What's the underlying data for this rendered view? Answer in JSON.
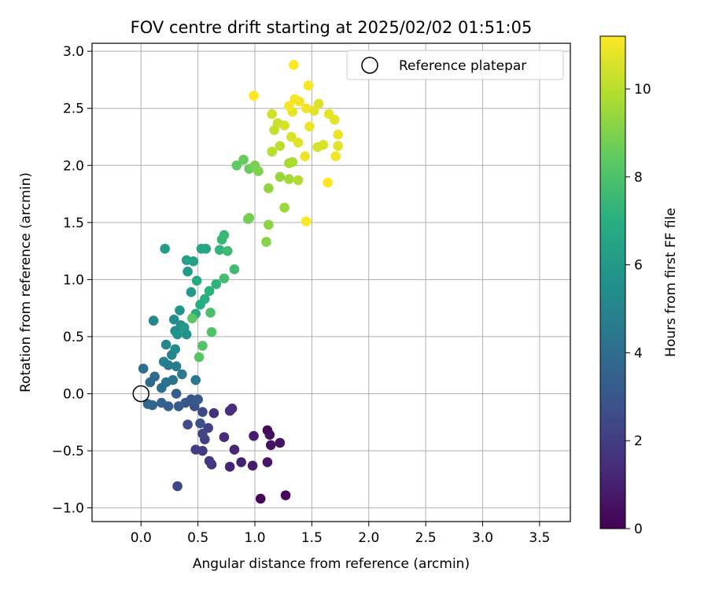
{
  "chart_data": {
    "type": "scatter",
    "title": "FOV centre drift starting at 2025/02/02 01:51:05",
    "xlabel": "Angular distance from reference (arcmin)",
    "ylabel": "Rotation from reference (arcmin)",
    "xlim": [
      -0.43,
      3.77
    ],
    "ylim": [
      -1.12,
      3.07
    ],
    "xticks": [
      "0.0",
      "0.5",
      "1.0",
      "1.5",
      "2.0",
      "2.5",
      "3.0",
      "3.5"
    ],
    "yticks": [
      "−1.0",
      "−0.5",
      "0.0",
      "0.5",
      "1.0",
      "1.5",
      "2.0",
      "2.5",
      "3.0"
    ],
    "grid": true,
    "legend": {
      "placement": "top-right",
      "entries": [
        "Reference platepar"
      ]
    },
    "reference_point": {
      "label": "Reference platepar",
      "x": 0.0,
      "y": 0.0
    },
    "colorbar": {
      "label": "Hours from first FF file",
      "colormap": "viridis",
      "range": [
        0,
        11.2
      ],
      "ticks": [
        "0",
        "2",
        "4",
        "6",
        "8",
        "10"
      ]
    },
    "points": [
      [
        1.05,
        -0.92,
        0.1
      ],
      [
        1.27,
        -0.89,
        0.2
      ],
      [
        1.11,
        -0.32,
        0.3
      ],
      [
        1.13,
        -0.36,
        0.4
      ],
      [
        1.14,
        -0.45,
        0.5
      ],
      [
        1.22,
        -0.43,
        0.6
      ],
      [
        1.11,
        -0.6,
        0.7
      ],
      [
        0.99,
        -0.37,
        0.8
      ],
      [
        0.98,
        -0.63,
        0.9
      ],
      [
        0.88,
        -0.6,
        1.0
      ],
      [
        0.78,
        -0.64,
        1.1
      ],
      [
        0.82,
        -0.49,
        1.2
      ],
      [
        0.73,
        -0.38,
        1.3
      ],
      [
        0.8,
        -0.13,
        1.4
      ],
      [
        0.78,
        -0.15,
        1.5
      ],
      [
        0.64,
        -0.17,
        1.6
      ],
      [
        0.62,
        -0.62,
        1.7
      ],
      [
        0.6,
        -0.59,
        1.8
      ],
      [
        0.54,
        -0.5,
        1.9
      ],
      [
        0.48,
        -0.49,
        2.0
      ],
      [
        0.56,
        -0.4,
        2.1
      ],
      [
        0.59,
        -0.3,
        2.2
      ],
      [
        0.54,
        -0.35,
        2.3
      ],
      [
        0.32,
        -0.81,
        2.4
      ],
      [
        0.54,
        -0.16,
        2.5
      ],
      [
        0.41,
        -0.27,
        2.6
      ],
      [
        0.47,
        -0.11,
        2.7
      ],
      [
        0.52,
        -0.26,
        2.8
      ],
      [
        0.44,
        -0.05,
        2.9
      ],
      [
        0.39,
        -0.08,
        3.0
      ],
      [
        0.5,
        -0.05,
        3.1
      ],
      [
        0.33,
        -0.11,
        3.2
      ],
      [
        0.31,
        0.0,
        3.3
      ],
      [
        0.24,
        -0.11,
        3.4
      ],
      [
        0.18,
        -0.08,
        3.5
      ],
      [
        0.1,
        -0.1,
        3.6
      ],
      [
        0.06,
        -0.09,
        3.7
      ],
      [
        0.08,
        0.1,
        3.8
      ],
      [
        0.12,
        0.15,
        3.9
      ],
      [
        0.02,
        0.22,
        4.0
      ],
      [
        0.18,
        0.05,
        4.1
      ],
      [
        0.22,
        0.1,
        4.2
      ],
      [
        0.28,
        0.12,
        4.3
      ],
      [
        0.48,
        0.12,
        4.4
      ],
      [
        0.36,
        0.17,
        4.5
      ],
      [
        0.24,
        0.25,
        4.6
      ],
      [
        0.31,
        0.24,
        4.7
      ],
      [
        0.2,
        0.28,
        4.8
      ],
      [
        0.27,
        0.34,
        4.9
      ],
      [
        0.22,
        0.43,
        5.0
      ],
      [
        0.11,
        0.64,
        5.1
      ],
      [
        0.3,
        0.39,
        5.2
      ],
      [
        0.3,
        0.55,
        5.3
      ],
      [
        0.29,
        0.65,
        5.4
      ],
      [
        0.35,
        0.6,
        5.5
      ],
      [
        0.32,
        0.52,
        5.6
      ],
      [
        0.4,
        0.52,
        5.7
      ],
      [
        0.34,
        0.73,
        5.8
      ],
      [
        0.38,
        0.58,
        5.9
      ],
      [
        0.44,
        0.89,
        6.0
      ],
      [
        0.41,
        1.07,
        6.1
      ],
      [
        0.21,
        1.27,
        6.2
      ],
      [
        0.4,
        1.17,
        6.3
      ],
      [
        0.46,
        1.16,
        6.4
      ],
      [
        0.53,
        1.27,
        6.5
      ],
      [
        0.57,
        1.27,
        6.6
      ],
      [
        0.49,
        0.99,
        6.7
      ],
      [
        0.48,
        0.7,
        6.8
      ],
      [
        0.52,
        0.78,
        6.9
      ],
      [
        0.56,
        0.83,
        7.0
      ],
      [
        0.6,
        0.9,
        7.1
      ],
      [
        0.66,
        0.96,
        7.2
      ],
      [
        0.69,
        1.26,
        7.3
      ],
      [
        0.71,
        1.35,
        7.4
      ],
      [
        0.73,
        1.39,
        7.5
      ],
      [
        0.76,
        1.25,
        7.6
      ],
      [
        0.82,
        1.09,
        7.7
      ],
      [
        0.73,
        1.01,
        7.8
      ],
      [
        0.61,
        0.71,
        7.9
      ],
      [
        0.62,
        0.54,
        8.0
      ],
      [
        0.54,
        0.42,
        8.1
      ],
      [
        0.51,
        0.32,
        8.2
      ],
      [
        0.45,
        0.66,
        8.3
      ],
      [
        0.84,
        2.0,
        8.4
      ],
      [
        0.9,
        2.05,
        8.5
      ],
      [
        0.95,
        1.97,
        8.6
      ],
      [
        0.94,
        1.53,
        8.7
      ],
      [
        0.95,
        1.54,
        8.8
      ],
      [
        1.0,
        2.0,
        8.9
      ],
      [
        1.03,
        1.95,
        9.0
      ],
      [
        1.1,
        1.33,
        9.1
      ],
      [
        1.12,
        1.48,
        9.2
      ],
      [
        1.12,
        1.8,
        9.3
      ],
      [
        1.22,
        1.9,
        9.4
      ],
      [
        1.26,
        1.63,
        9.5
      ],
      [
        1.3,
        1.88,
        9.6
      ],
      [
        1.3,
        2.02,
        9.7
      ],
      [
        1.33,
        2.03,
        9.8
      ],
      [
        1.38,
        1.87,
        9.9
      ],
      [
        1.15,
        2.12,
        10.0
      ],
      [
        1.22,
        2.17,
        10.1
      ],
      [
        1.17,
        2.31,
        10.2
      ],
      [
        1.2,
        2.37,
        10.3
      ],
      [
        1.15,
        2.45,
        10.4
      ],
      [
        1.26,
        2.35,
        10.5
      ],
      [
        1.32,
        2.25,
        10.6
      ],
      [
        1.38,
        2.2,
        10.7
      ],
      [
        1.33,
        2.47,
        10.8
      ],
      [
        1.44,
        2.08,
        10.9
      ],
      [
        1.45,
        2.5,
        11.0
      ],
      [
        1.35,
        2.58,
        11.1
      ],
      [
        1.45,
        1.51,
        11.15
      ],
      [
        0.99,
        2.61,
        11.2
      ],
      [
        1.34,
        2.88,
        11.2
      ],
      [
        1.64,
        1.85,
        11.2
      ],
      [
        1.47,
        2.7,
        11.1
      ],
      [
        1.7,
        2.4,
        10.8
      ],
      [
        1.73,
        2.27,
        10.9
      ],
      [
        1.73,
        2.17,
        10.7
      ],
      [
        1.71,
        2.08,
        11.0
      ],
      [
        1.6,
        2.18,
        10.6
      ],
      [
        1.55,
        2.16,
        10.5
      ],
      [
        1.56,
        2.54,
        10.6
      ],
      [
        1.52,
        2.48,
        10.7
      ],
      [
        1.65,
        2.45,
        10.8
      ],
      [
        1.48,
        2.34,
        10.9
      ],
      [
        1.39,
        2.56,
        11.0
      ],
      [
        1.3,
        2.52,
        11.1
      ]
    ]
  }
}
